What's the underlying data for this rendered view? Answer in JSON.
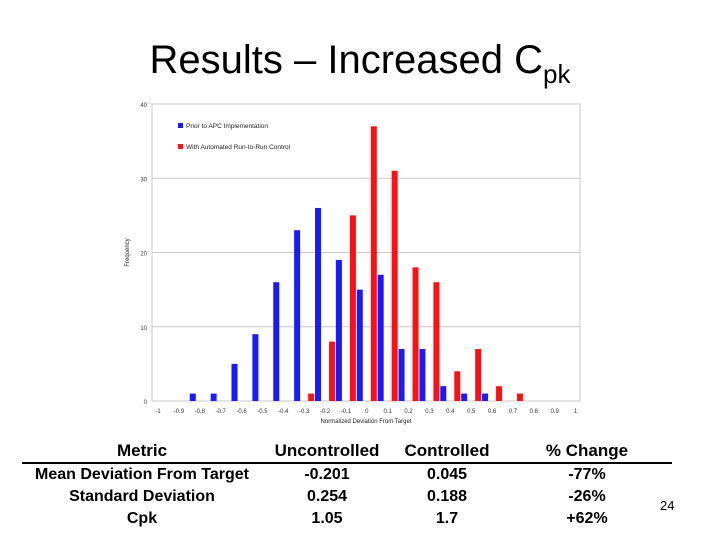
{
  "slide": {
    "title": "Results – Increased C",
    "title_subscript": "pk",
    "page_number": "24"
  },
  "chart_data": {
    "type": "bar",
    "title": "",
    "xlabel": "Normalized Deviation From Target",
    "ylabel": "Frequency",
    "categories": [
      "-1",
      "-0.9",
      "-0.8",
      "-0.7",
      "-0.6",
      "-0.5",
      "-0.4",
      "-0.3",
      "-0.2",
      "-0.1",
      "0",
      "0.1",
      "0.2",
      "0.3",
      "0.4",
      "0.5",
      "0.6",
      "0.7",
      "0.8",
      "0.9",
      "1"
    ],
    "series": [
      {
        "name": "Prior to APC Implementation",
        "color": "#1a1aff",
        "values": [
          0,
          0,
          1,
          1,
          5,
          9,
          16,
          23,
          26,
          19,
          15,
          17,
          7,
          7,
          2,
          1,
          1,
          0,
          0,
          0,
          0
        ]
      },
      {
        "name": "With Automated Run-to-Run Control",
        "color": "#ff1010",
        "values": [
          0,
          0,
          0,
          0,
          0,
          0,
          0,
          1,
          8,
          25,
          37,
          31,
          18,
          16,
          4,
          7,
          2,
          1,
          0,
          0,
          0
        ]
      }
    ],
    "ylim": [
      0,
      40
    ],
    "yticks": [
      "0",
      "10",
      "20",
      "30",
      "40"
    ],
    "grid": true,
    "legend_position": "top-left"
  },
  "table": {
    "headers": [
      "Metric",
      "Uncontrolled",
      "Controlled",
      "% Change"
    ],
    "rows": [
      [
        "Mean Deviation From Target",
        "-0.201",
        "0.045",
        "-77%"
      ],
      [
        "Standard Deviation",
        "0.254",
        "0.188",
        "-26%"
      ],
      [
        "Cpk",
        "1.05",
        "1.7",
        "+62%"
      ]
    ]
  }
}
